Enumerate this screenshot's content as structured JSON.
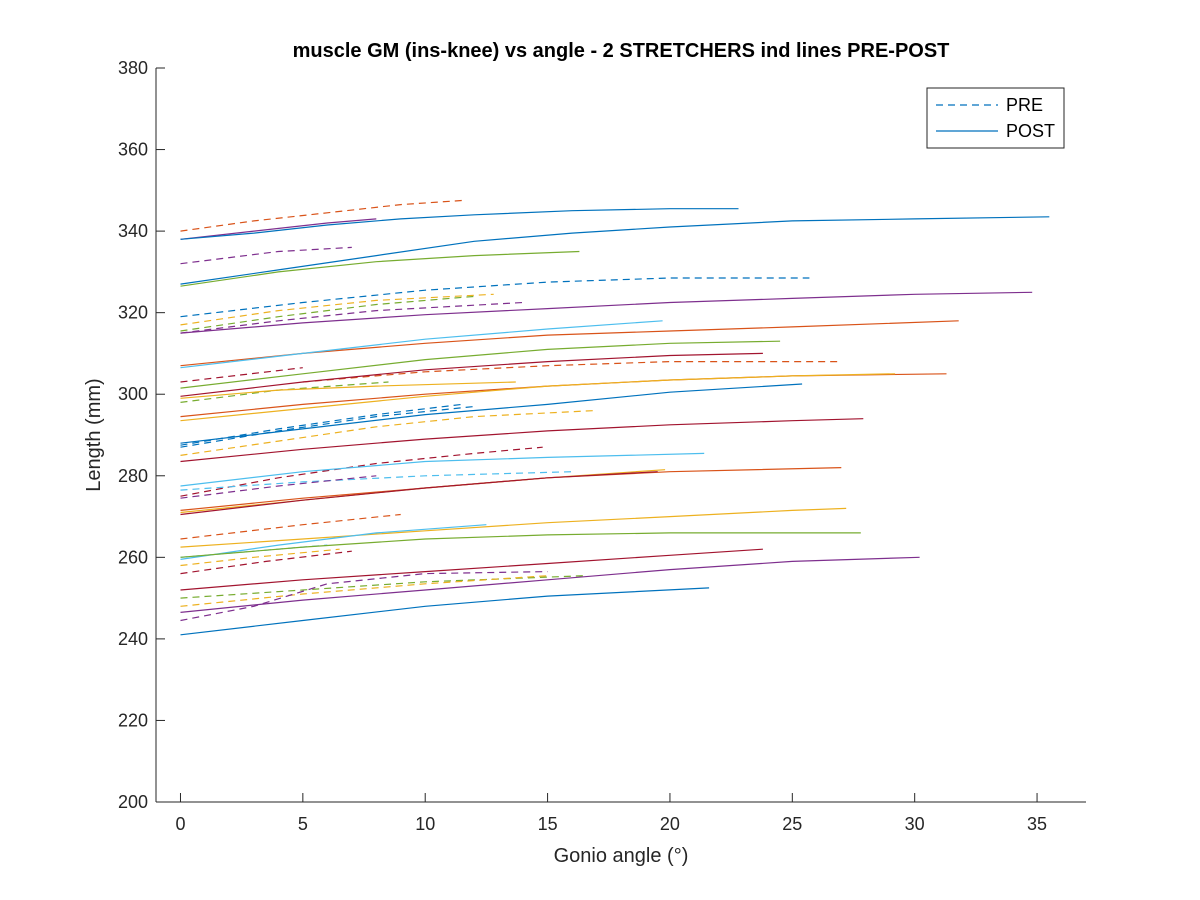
{
  "chart_data": {
    "type": "line",
    "title": "muscle GM (ins-knee) vs angle - 2 STRETCHERS ind lines PRE-POST",
    "xlabel": "Gonio angle (°)",
    "ylabel": "Length (mm)",
    "xlim": [
      -1,
      37
    ],
    "ylim": [
      200,
      380
    ],
    "xticks": [
      0,
      5,
      10,
      15,
      20,
      25,
      30,
      35
    ],
    "yticks": [
      200,
      220,
      240,
      260,
      280,
      300,
      320,
      340,
      360,
      380
    ],
    "grid": false,
    "legend": {
      "placement": "top-right",
      "entries": [
        {
          "label": "PRE",
          "style": "dashed",
          "color": "#0072BD"
        },
        {
          "label": "POST",
          "style": "solid",
          "color": "#0072BD"
        }
      ]
    },
    "colors": {
      "blue": "#0072BD",
      "orange": "#D95319",
      "yellow": "#EDB120",
      "purple": "#7E2F8E",
      "green": "#77AC30",
      "cyan": "#4DBEEE",
      "red": "#A2142F"
    },
    "series": [
      {
        "group": "PRE",
        "color": "orange",
        "x": [
          0,
          3,
          6,
          9,
          11.5
        ],
        "y": [
          340,
          342.5,
          344.5,
          346.5,
          347.5
        ]
      },
      {
        "group": "PRE",
        "color": "purple",
        "x": [
          0,
          2,
          4,
          7
        ],
        "y": [
          332,
          333.5,
          335,
          336
        ]
      },
      {
        "group": "PRE",
        "color": "blue",
        "x": [
          0,
          5,
          10,
          15,
          20,
          25.7
        ],
        "y": [
          319,
          322.5,
          325.5,
          327.5,
          328.5,
          328.5
        ]
      },
      {
        "group": "PRE",
        "color": "yellow",
        "x": [
          0,
          4,
          8,
          12.8
        ],
        "y": [
          317,
          320.5,
          323,
          324.5
        ]
      },
      {
        "group": "PRE",
        "color": "green",
        "x": [
          0,
          4,
          8,
          12
        ],
        "y": [
          315.5,
          319,
          322,
          324
        ]
      },
      {
        "group": "PRE",
        "color": "purple",
        "x": [
          0,
          4,
          8,
          14
        ],
        "y": [
          315,
          318,
          320.5,
          322.5
        ]
      },
      {
        "group": "PRE",
        "color": "red",
        "x": [
          0,
          5
        ],
        "y": [
          303,
          306.5
        ]
      },
      {
        "group": "PRE",
        "color": "orange",
        "x": [
          5,
          10,
          15,
          20,
          25,
          27
        ],
        "y": [
          303,
          305.5,
          307,
          308,
          308,
          308
        ]
      },
      {
        "group": "PRE",
        "color": "green",
        "x": [
          0,
          4,
          8.5
        ],
        "y": [
          298,
          301,
          303
        ]
      },
      {
        "group": "PRE",
        "color": "blue",
        "x": [
          0,
          4,
          8,
          11.5
        ],
        "y": [
          287.5,
          291.5,
          295,
          297.5
        ]
      },
      {
        "group": "PRE",
        "color": "yellow",
        "x": [
          0,
          4,
          8,
          12,
          17
        ],
        "y": [
          285,
          288.5,
          292,
          294.5,
          296
        ]
      },
      {
        "group": "PRE",
        "color": "blue",
        "x": [
          0,
          4,
          8,
          12
        ],
        "y": [
          287,
          291,
          294.5,
          297
        ]
      },
      {
        "group": "PRE",
        "color": "red",
        "x": [
          0,
          4,
          8,
          12,
          14.8
        ],
        "y": [
          275,
          279.5,
          283,
          285.5,
          287
        ]
      },
      {
        "group": "PRE",
        "color": "cyan",
        "x": [
          0,
          5,
          10,
          16
        ],
        "y": [
          276.5,
          278.5,
          280,
          281
        ]
      },
      {
        "group": "PRE",
        "color": "purple",
        "x": [
          0,
          4,
          8
        ],
        "y": [
          274.5,
          277.5,
          280
        ]
      },
      {
        "group": "PRE",
        "color": "orange",
        "x": [
          0,
          5,
          9
        ],
        "y": [
          264.5,
          268,
          270.5
        ]
      },
      {
        "group": "PRE",
        "color": "red",
        "x": [
          0,
          3.5,
          7
        ],
        "y": [
          256,
          259,
          261.5
        ]
      },
      {
        "group": "PRE",
        "color": "yellow",
        "x": [
          0,
          3,
          6.5
        ],
        "y": [
          258,
          260,
          262
        ]
      },
      {
        "group": "PRE",
        "color": "cyan",
        "x": [
          0,
          3,
          6
        ],
        "y": [
          260,
          261.5,
          263
        ]
      },
      {
        "group": "PRE",
        "color": "green",
        "x": [
          0,
          5,
          10,
          16.5
        ],
        "y": [
          250,
          252,
          254,
          255.5
        ]
      },
      {
        "group": "PRE",
        "color": "yellow",
        "x": [
          0,
          5,
          10,
          15
        ],
        "y": [
          248,
          251,
          253.5,
          255.5
        ]
      },
      {
        "group": "PRE",
        "color": "purple",
        "x": [
          0,
          3,
          6,
          10,
          15
        ],
        "y": [
          244.5,
          248,
          253.5,
          256,
          256.5
        ]
      },
      {
        "group": "POST",
        "color": "purple",
        "x": [
          0,
          3,
          6,
          8
        ],
        "y": [
          338,
          340,
          342,
          343
        ]
      },
      {
        "group": "POST",
        "color": "blue",
        "x": [
          0,
          3,
          6,
          9,
          12,
          16,
          20,
          22.8
        ],
        "y": [
          338,
          339.5,
          341.5,
          343,
          344,
          345,
          345.5,
          345.5
        ]
      },
      {
        "group": "POST",
        "color": "blue",
        "x": [
          0,
          4,
          8,
          12,
          16,
          20,
          25,
          30,
          35.5
        ],
        "y": [
          327,
          330.5,
          334,
          337.5,
          339.5,
          341,
          342.5,
          343,
          343.5
        ]
      },
      {
        "group": "POST",
        "color": "green",
        "x": [
          0,
          4,
          8,
          12,
          16.3
        ],
        "y": [
          326.5,
          330,
          332.5,
          334,
          335
        ]
      },
      {
        "group": "POST",
        "color": "purple",
        "x": [
          0,
          5,
          10,
          15,
          20,
          25,
          30,
          34.8
        ],
        "y": [
          315,
          317.5,
          319.5,
          321,
          322.5,
          323.5,
          324.5,
          325
        ]
      },
      {
        "group": "POST",
        "color": "orange",
        "x": [
          0,
          5,
          10,
          15,
          20,
          25,
          31.8
        ],
        "y": [
          307,
          310,
          312.5,
          314.5,
          315.5,
          316.5,
          318
        ]
      },
      {
        "group": "POST",
        "color": "cyan",
        "x": [
          0,
          5,
          10,
          15,
          19.7
        ],
        "y": [
          306.5,
          310,
          313.5,
          316,
          318
        ]
      },
      {
        "group": "POST",
        "color": "green",
        "x": [
          0,
          5,
          10,
          15,
          20,
          24.5
        ],
        "y": [
          301.5,
          305,
          308.5,
          311,
          312.5,
          313
        ]
      },
      {
        "group": "POST",
        "color": "red",
        "x": [
          0,
          5,
          10,
          15,
          20,
          23.8
        ],
        "y": [
          299.5,
          303,
          306,
          308,
          309.5,
          310
        ]
      },
      {
        "group": "POST",
        "color": "orange",
        "x": [
          0,
          5,
          10,
          15,
          20,
          25,
          31.3
        ],
        "y": [
          294.5,
          297.5,
          300,
          302,
          303.5,
          304.5,
          305
        ]
      },
      {
        "group": "POST",
        "color": "yellow",
        "x": [
          0,
          5,
          10,
          15,
          20,
          25,
          29.2
        ],
        "y": [
          293.5,
          296.5,
          299.5,
          302,
          303.5,
          304.5,
          305
        ]
      },
      {
        "group": "POST",
        "color": "yellow",
        "x": [
          0,
          4,
          8,
          13.7
        ],
        "y": [
          299,
          301,
          302,
          303
        ]
      },
      {
        "group": "POST",
        "color": "blue",
        "x": [
          0,
          5,
          10,
          15,
          20,
          25.4
        ],
        "y": [
          288,
          291.5,
          295,
          297.5,
          300.5,
          302.5
        ]
      },
      {
        "group": "POST",
        "color": "red",
        "x": [
          0,
          5,
          10,
          15,
          20,
          25,
          27.9
        ],
        "y": [
          283.5,
          286.5,
          289,
          291,
          292.5,
          293.5,
          294
        ]
      },
      {
        "group": "POST",
        "color": "cyan",
        "x": [
          0,
          5,
          10,
          15,
          21.4
        ],
        "y": [
          277.5,
          281,
          283.5,
          284.5,
          285.5
        ]
      },
      {
        "group": "POST",
        "color": "orange",
        "x": [
          0,
          5,
          10,
          15,
          20,
          27
        ],
        "y": [
          271.5,
          274.5,
          277,
          279.5,
          281,
          282
        ]
      },
      {
        "group": "POST",
        "color": "yellow",
        "x": [
          0,
          5,
          10,
          15,
          19.8
        ],
        "y": [
          271,
          274,
          277,
          279.5,
          281.5
        ]
      },
      {
        "group": "POST",
        "color": "red",
        "x": [
          0,
          5,
          10,
          15,
          19.5
        ],
        "y": [
          270.5,
          274,
          277,
          279.5,
          281
        ]
      },
      {
        "group": "POST",
        "color": "yellow",
        "x": [
          0,
          5,
          10,
          15,
          20,
          25,
          27.2
        ],
        "y": [
          262.5,
          264.5,
          266.5,
          268.5,
          270,
          271.5,
          272
        ]
      },
      {
        "group": "POST",
        "color": "cyan",
        "x": [
          0,
          4,
          8,
          12.5
        ],
        "y": [
          259.5,
          263,
          266,
          268
        ]
      },
      {
        "group": "POST",
        "color": "green",
        "x": [
          0,
          5,
          10,
          15,
          20,
          25,
          27.8
        ],
        "y": [
          260,
          262.5,
          264.5,
          265.5,
          266,
          266,
          266
        ]
      },
      {
        "group": "POST",
        "color": "red",
        "x": [
          0,
          5,
          10,
          15,
          20,
          23.8
        ],
        "y": [
          252,
          254.5,
          256.5,
          258.5,
          260.5,
          262
        ]
      },
      {
        "group": "POST",
        "color": "purple",
        "x": [
          0,
          5,
          10,
          15,
          20,
          25,
          30.2
        ],
        "y": [
          246.5,
          249.5,
          252,
          254.5,
          257,
          259,
          260
        ]
      },
      {
        "group": "POST",
        "color": "blue",
        "x": [
          0,
          5,
          10,
          15,
          21.6
        ],
        "y": [
          241,
          244.5,
          248,
          250.5,
          252.5
        ]
      }
    ]
  }
}
